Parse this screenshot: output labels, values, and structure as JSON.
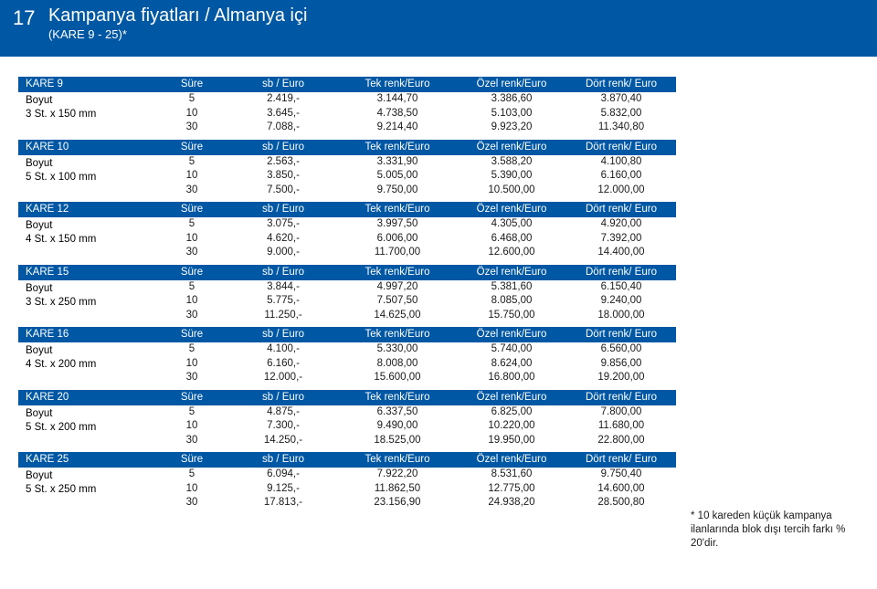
{
  "header": {
    "num": "17",
    "title": "Kampanya fiyatları / Almanya içi",
    "subtitle": "(KARE 9 - 25)*"
  },
  "columns": {
    "sure": "Süre",
    "sb": "sb / Euro",
    "tek": "Tek renk/Euro",
    "ozel": "Özel renk/Euro",
    "dort": "Dört renk/ Euro"
  },
  "boyut_label": "Boyut",
  "blocks": [
    {
      "name": "KARE 9",
      "size": "3 St.  x 150 mm",
      "rows": [
        {
          "sure": "5",
          "sb": "2.419,-",
          "tek": "3.144,70",
          "ozel": "3.386,60",
          "dort": "3.870,40"
        },
        {
          "sure": "10",
          "sb": "3.645,-",
          "tek": "4.738,50",
          "ozel": "5.103,00",
          "dort": "5.832,00"
        },
        {
          "sure": "30",
          "sb": "7.088,-",
          "tek": "9.214,40",
          "ozel": "9.923,20",
          "dort": "11.340,80"
        }
      ]
    },
    {
      "name": "KARE 10",
      "size": "5 St.  x 100 mm",
      "rows": [
        {
          "sure": "5",
          "sb": "2.563,-",
          "tek": "3.331,90",
          "ozel": "3.588,20",
          "dort": "4.100,80"
        },
        {
          "sure": "10",
          "sb": "3.850,-",
          "tek": "5.005,00",
          "ozel": "5.390,00",
          "dort": "6.160,00"
        },
        {
          "sure": "30",
          "sb": "7.500,-",
          "tek": "9.750,00",
          "ozel": "10.500,00",
          "dort": "12.000,00"
        }
      ]
    },
    {
      "name": "KARE 12",
      "size": "4 St.  x 150 mm",
      "rows": [
        {
          "sure": "5",
          "sb": "3.075,-",
          "tek": "3.997,50",
          "ozel": "4.305,00",
          "dort": "4.920,00"
        },
        {
          "sure": "10",
          "sb": "4.620,-",
          "tek": "6.006,00",
          "ozel": "6.468,00",
          "dort": "7.392,00"
        },
        {
          "sure": "30",
          "sb": "9.000,-",
          "tek": "11.700,00",
          "ozel": "12.600,00",
          "dort": "14.400,00"
        }
      ]
    },
    {
      "name": "KARE 15",
      "size": "3 St.  x 250 mm",
      "rows": [
        {
          "sure": "5",
          "sb": "3.844,-",
          "tek": "4.997,20",
          "ozel": "5.381,60",
          "dort": "6.150,40"
        },
        {
          "sure": "10",
          "sb": "5.775,-",
          "tek": "7.507,50",
          "ozel": "8.085,00",
          "dort": "9.240,00"
        },
        {
          "sure": "30",
          "sb": "11.250,-",
          "tek": "14.625,00",
          "ozel": "15.750,00",
          "dort": "18.000,00"
        }
      ]
    },
    {
      "name": "KARE 16",
      "size": "4 St.  x 200 mm",
      "rows": [
        {
          "sure": "5",
          "sb": "4.100,-",
          "tek": "5.330,00",
          "ozel": "5.740,00",
          "dort": "6.560,00"
        },
        {
          "sure": "10",
          "sb": "6.160,-",
          "tek": "8.008,00",
          "ozel": "8.624,00",
          "dort": "9.856,00"
        },
        {
          "sure": "30",
          "sb": "12.000,-",
          "tek": "15.600,00",
          "ozel": "16.800,00",
          "dort": "19.200,00"
        }
      ]
    },
    {
      "name": "KARE 20",
      "size": "5 St.  x 200 mm",
      "rows": [
        {
          "sure": "5",
          "sb": "4.875,-",
          "tek": "6.337,50",
          "ozel": "6.825,00",
          "dort": "7.800,00"
        },
        {
          "sure": "10",
          "sb": "7.300,-",
          "tek": "9.490,00",
          "ozel": "10.220,00",
          "dort": "11.680,00"
        },
        {
          "sure": "30",
          "sb": "14.250,-",
          "tek": "18.525,00",
          "ozel": "19.950,00",
          "dort": "22.800,00"
        }
      ]
    },
    {
      "name": "KARE 25",
      "size": "5 St.  x 250 mm",
      "rows": [
        {
          "sure": "5",
          "sb": "6.094,-",
          "tek": "7.922,20",
          "ozel": "8.531,60",
          "dort": "9.750,40"
        },
        {
          "sure": "10",
          "sb": "9.125,-",
          "tek": "11.862,50",
          "ozel": "12.775,00",
          "dort": "14.600,00"
        },
        {
          "sure": "30",
          "sb": "17.813,-",
          "tek": "23.156,90",
          "ozel": "24.938,20",
          "dort": "28.500,80"
        }
      ]
    }
  ],
  "footnote": "* 10 kareden küçük kampanya ilanlarında blok dışı tercih farkı % 20'dir.",
  "colors": {
    "brand": "#0057a4",
    "text": "#1a1a1a",
    "bg": "#ffffff"
  }
}
